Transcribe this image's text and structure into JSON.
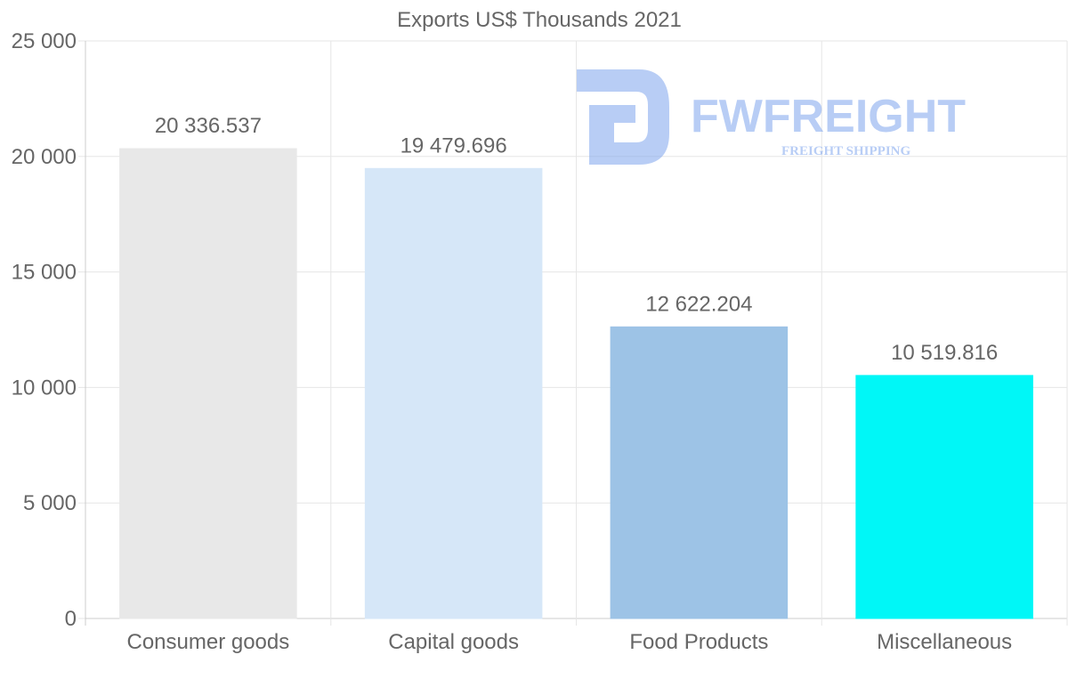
{
  "chart_data": {
    "type": "bar",
    "title": "Exports US$ Thousands 2021",
    "categories": [
      "Consumer goods",
      "Capital goods",
      "Food Products",
      "Miscellaneous"
    ],
    "values": [
      20336.537,
      19479.696,
      12622.204,
      10519.816
    ],
    "value_labels": [
      "20 336.537",
      "19 479.696",
      "12 622.204",
      "10 519.816"
    ],
    "colors": [
      "#e8e8e8",
      "#d6e7f8",
      "#9dc3e6",
      "#00f7f7"
    ],
    "ylim": [
      0,
      25000
    ],
    "yticks": [
      0,
      5000,
      10000,
      15000,
      20000,
      25000
    ],
    "ytick_labels": [
      "0",
      "5 000",
      "10 000",
      "15 000",
      "20 000",
      "25 000"
    ],
    "xlabel": "",
    "ylabel": "",
    "grid": true
  },
  "watermark": {
    "name": "FWFREIGHT",
    "tagline": "FREIGHT SHIPPING",
    "color": "#7fa6ee"
  }
}
